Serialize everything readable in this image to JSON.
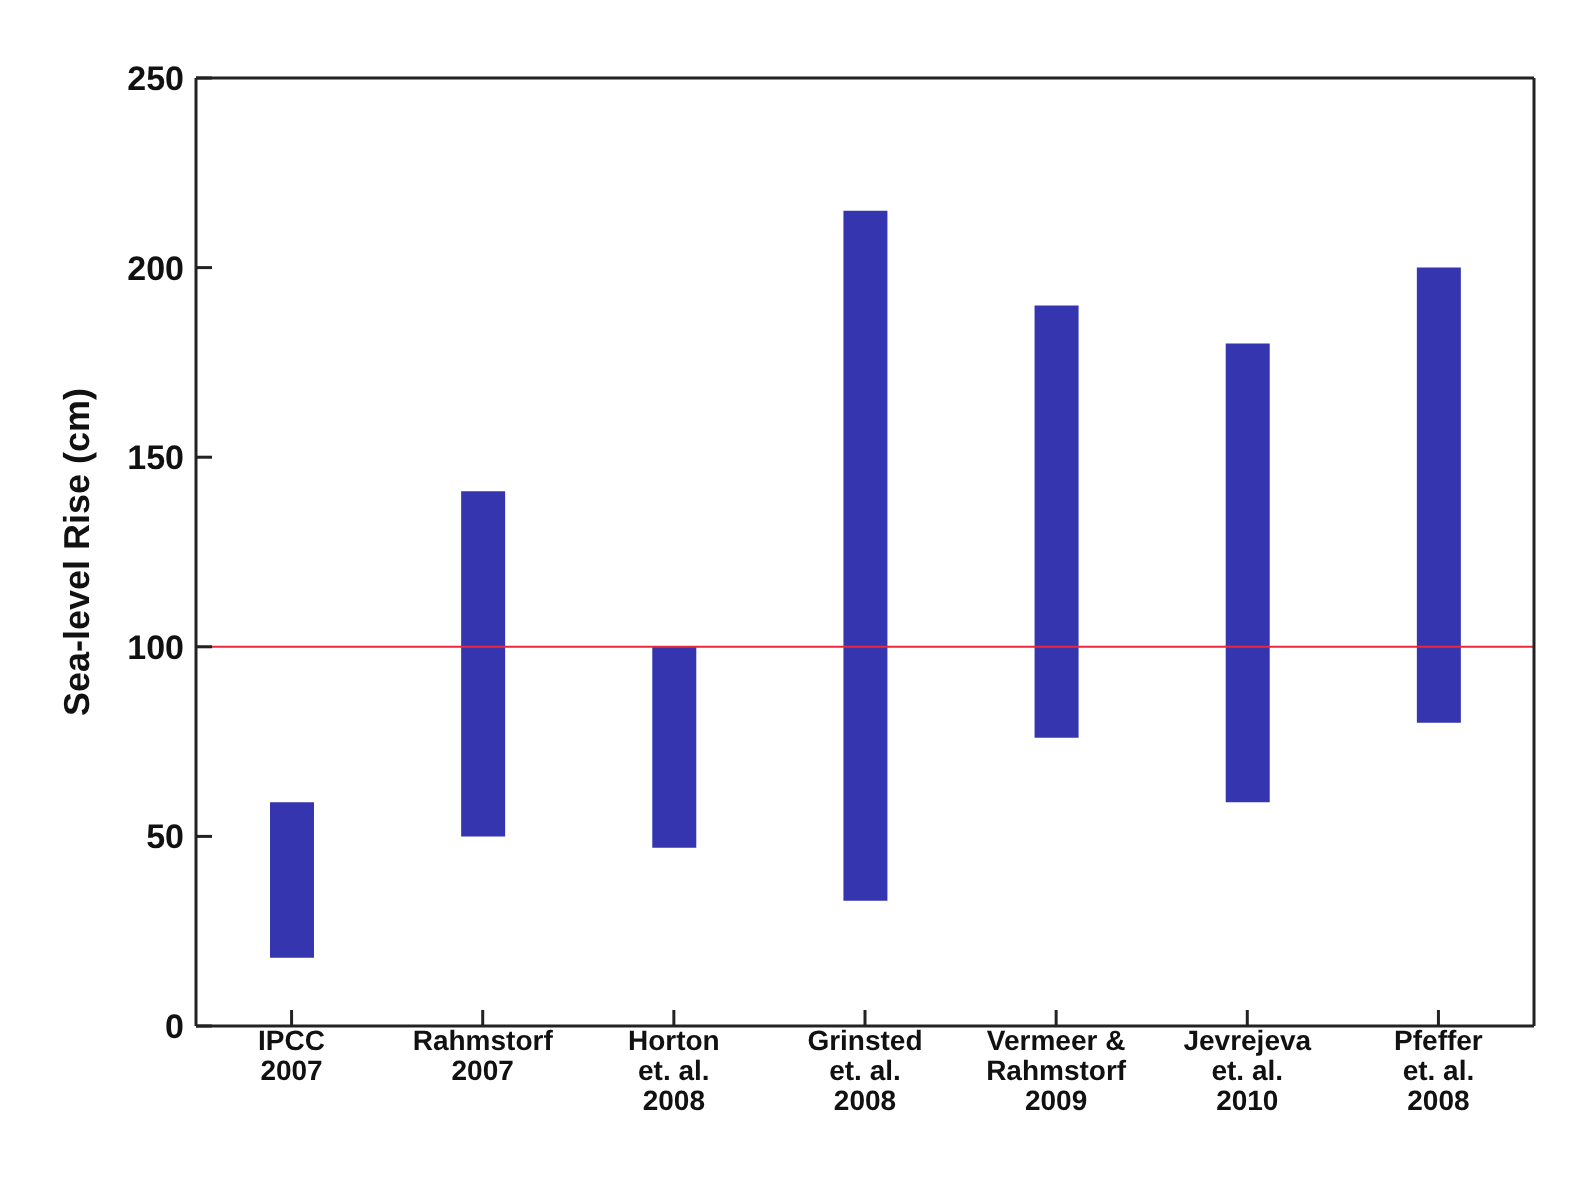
{
  "chart_data": {
    "type": "bar",
    "ylabel": "Sea-level Rise (cm)",
    "categories": [
      "IPCC\n2007",
      "Rahmstorf\n2007",
      "Horton\net. al.\n2008",
      "Grinsted\net. al.\n2008",
      "Vermeer &\nRahmstorf\n2009",
      "Jevrejeva\net. al.\n2010",
      "Pfeffer\net. al.\n2008"
    ],
    "base": [
      18,
      50,
      47,
      33,
      76,
      59,
      80
    ],
    "values": [
      41,
      91,
      53,
      182,
      114,
      121,
      120
    ],
    "color": "#3535b0",
    "ylim": [
      0,
      250
    ],
    "yticks": [
      0,
      50,
      100,
      150,
      200,
      250
    ],
    "ref_lines": [
      {
        "axis": "y",
        "value": 100,
        "color": "#e8283c"
      }
    ],
    "grid": false
  }
}
